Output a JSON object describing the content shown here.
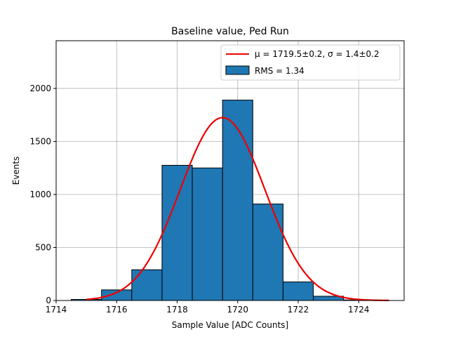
{
  "chart_data": {
    "type": "bar",
    "title": "Baseline value, Ped Run",
    "xlabel": "Sample Value [ADC Counts]",
    "ylabel": "Events",
    "xlim": [
      1714,
      1725.5
    ],
    "ylim": [
      0,
      2450
    ],
    "x_ticks": [
      1714,
      1716,
      1718,
      1720,
      1722,
      1724
    ],
    "y_ticks": [
      0,
      500,
      1000,
      1500,
      2000
    ],
    "grid": true,
    "legend_position": "top-right",
    "bins": [
      {
        "x0": 1714.5,
        "x1": 1715.5,
        "value": 10
      },
      {
        "x0": 1715.5,
        "x1": 1716.5,
        "value": 100
      },
      {
        "x0": 1716.5,
        "x1": 1717.5,
        "value": 290
      },
      {
        "x0": 1717.5,
        "x1": 1718.5,
        "value": 1275
      },
      {
        "x0": 1718.5,
        "x1": 1719.5,
        "value": 1250
      },
      {
        "x0": 1719.5,
        "x1": 1720.5,
        "value": 1890
      },
      {
        "x0": 1720.5,
        "x1": 1721.5,
        "value": 910
      },
      {
        "x0": 1721.5,
        "x1": 1722.5,
        "value": 175
      },
      {
        "x0": 1722.5,
        "x1": 1723.5,
        "value": 40
      },
      {
        "x0": 1723.5,
        "x1": 1724.5,
        "value": 5
      }
    ],
    "fit": {
      "type": "gaussian",
      "mu": 1719.5,
      "sigma": 1.4,
      "amplitude": 1725,
      "x_range": [
        1715,
        1725
      ]
    },
    "legend": {
      "fit_label": "μ = 1719.5±0.2, σ = 1.4±0.2",
      "hist_label": "RMS = 1.34"
    },
    "colors": {
      "bar_fill": "#1f77b4",
      "bar_edge": "#000000",
      "fit_line": "#ee0000",
      "grid": "#b0b0b0"
    }
  }
}
